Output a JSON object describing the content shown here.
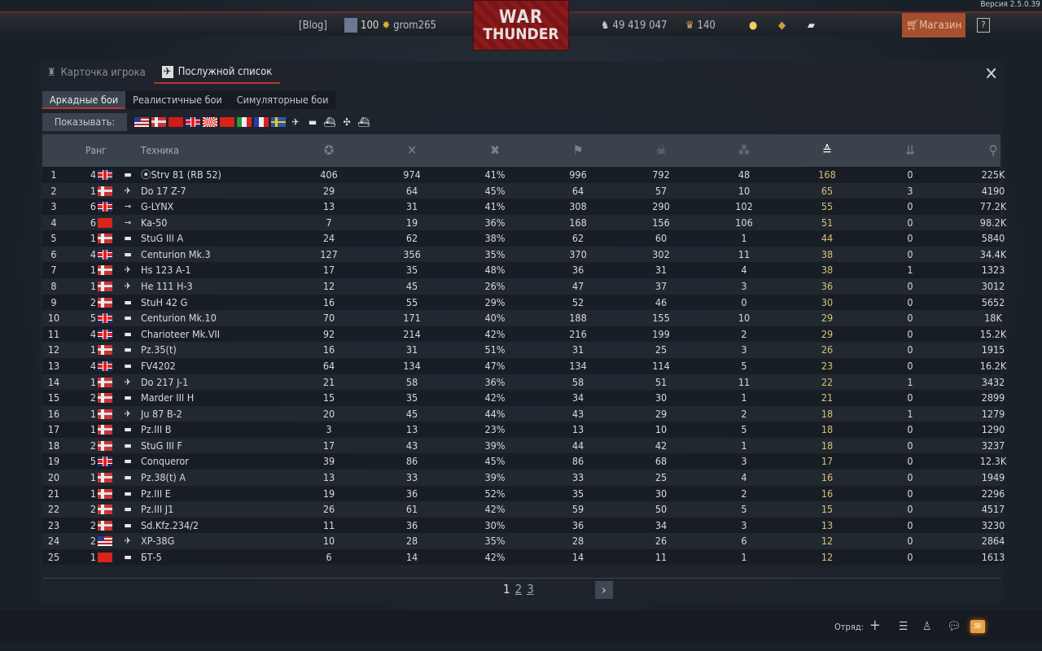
{
  "version": "Версия 2.5.0.39",
  "topbar": {
    "blog": "[Blog]",
    "level": "100",
    "username": "grom265",
    "silver_lions": "49 419 047",
    "eagles": "140",
    "shop": "Магазин",
    "help": "?",
    "logo_top": "WAR",
    "logo_bottom": "THUNDER"
  },
  "tabs": [
    {
      "label": "Карточка игрока",
      "icon": "player-card-icon"
    },
    {
      "label": "Послужной список",
      "icon": "service-record-icon"
    }
  ],
  "modes": [
    "Аркадные бои",
    "Реалистичные бои",
    "Симуляторные бои"
  ],
  "filter": {
    "label": "Показывать:",
    "nations": [
      "us",
      "de",
      "su",
      "uk",
      "jp",
      "cn",
      "it",
      "fr",
      "se"
    ],
    "types": [
      "aircraft",
      "tank",
      "ship",
      "helicopter",
      "boat"
    ]
  },
  "table": {
    "headers": {
      "rank": "Ранг",
      "vehicle": "Техника"
    },
    "stat_icons": [
      "victories-icon",
      "battles-icon",
      "win-rate-icon",
      "respawns-icon",
      "deaths-icon",
      "air-kills-icon",
      "ground-kills-icon",
      "naval-kills-icon",
      "activity-icon"
    ],
    "sorted_column": 6,
    "accent": "#d8c07a",
    "rows": [
      [
        "1",
        "4",
        "uk",
        "tank",
        "⦿Strv 81 (RB 52)",
        "406",
        "974",
        "41%",
        "996",
        "792",
        "48",
        "168",
        "0",
        "225K"
      ],
      [
        "2",
        "1",
        "de",
        "aircraft",
        "Do 17 Z-7",
        "29",
        "64",
        "45%",
        "64",
        "57",
        "10",
        "65",
        "3",
        "4190"
      ],
      [
        "3",
        "6",
        "uk",
        "helicopter",
        "G-LYNX",
        "13",
        "31",
        "41%",
        "308",
        "290",
        "102",
        "55",
        "0",
        "77.2K"
      ],
      [
        "4",
        "6",
        "cn",
        "helicopter",
        "Ka-50",
        "7",
        "19",
        "36%",
        "168",
        "156",
        "106",
        "51",
        "0",
        "98.2K"
      ],
      [
        "5",
        "1",
        "de",
        "tank",
        "StuG III A",
        "24",
        "62",
        "38%",
        "62",
        "60",
        "1",
        "44",
        "0",
        "5840"
      ],
      [
        "6",
        "4",
        "uk",
        "tank",
        "Centurion Mk.3",
        "127",
        "356",
        "35%",
        "370",
        "302",
        "11",
        "38",
        "0",
        "34.4K"
      ],
      [
        "7",
        "1",
        "de",
        "aircraft",
        "Hs 123 A-1",
        "17",
        "35",
        "48%",
        "36",
        "31",
        "4",
        "38",
        "1",
        "1323"
      ],
      [
        "8",
        "1",
        "de",
        "aircraft",
        "He 111 H-3",
        "12",
        "45",
        "26%",
        "47",
        "37",
        "3",
        "36",
        "0",
        "3012"
      ],
      [
        "9",
        "2",
        "de",
        "tank",
        "StuH 42 G",
        "16",
        "55",
        "29%",
        "52",
        "46",
        "0",
        "30",
        "0",
        "5652"
      ],
      [
        "10",
        "5",
        "uk",
        "tank",
        "Centurion Mk.10",
        "70",
        "171",
        "40%",
        "188",
        "155",
        "10",
        "29",
        "0",
        "18K"
      ],
      [
        "11",
        "4",
        "uk",
        "tank",
        "Charioteer Mk.VII",
        "92",
        "214",
        "42%",
        "216",
        "199",
        "2",
        "29",
        "0",
        "15.2K"
      ],
      [
        "12",
        "1",
        "de",
        "tank",
        "Pz.35(t)",
        "16",
        "31",
        "51%",
        "31",
        "25",
        "3",
        "26",
        "0",
        "1915"
      ],
      [
        "13",
        "4",
        "uk",
        "tank",
        "FV4202",
        "64",
        "134",
        "47%",
        "134",
        "114",
        "5",
        "23",
        "0",
        "16.2K"
      ],
      [
        "14",
        "1",
        "de",
        "aircraft",
        "Do 217 J-1",
        "21",
        "58",
        "36%",
        "58",
        "51",
        "11",
        "22",
        "1",
        "3432"
      ],
      [
        "15",
        "2",
        "de",
        "tank",
        "Marder III H",
        "15",
        "35",
        "42%",
        "34",
        "30",
        "1",
        "21",
        "0",
        "2899"
      ],
      [
        "16",
        "1",
        "de",
        "aircraft",
        "Ju 87 B-2",
        "20",
        "45",
        "44%",
        "43",
        "29",
        "2",
        "18",
        "1",
        "1279"
      ],
      [
        "17",
        "1",
        "de",
        "tank",
        "Pz.III B",
        "3",
        "13",
        "23%",
        "13",
        "10",
        "5",
        "18",
        "0",
        "1290"
      ],
      [
        "18",
        "2",
        "de",
        "tank",
        "StuG III F",
        "17",
        "43",
        "39%",
        "44",
        "42",
        "1",
        "18",
        "0",
        "3237"
      ],
      [
        "19",
        "5",
        "uk",
        "tank",
        "Conqueror",
        "39",
        "86",
        "45%",
        "86",
        "68",
        "3",
        "17",
        "0",
        "12.3K"
      ],
      [
        "20",
        "1",
        "de",
        "tank",
        "Pz.38(t) A",
        "13",
        "33",
        "39%",
        "33",
        "25",
        "4",
        "16",
        "0",
        "1949"
      ],
      [
        "21",
        "1",
        "de",
        "tank",
        "Pz.III E",
        "19",
        "36",
        "52%",
        "35",
        "30",
        "2",
        "16",
        "0",
        "2296"
      ],
      [
        "22",
        "2",
        "de",
        "tank",
        "Pz.III J1",
        "26",
        "61",
        "42%",
        "59",
        "50",
        "5",
        "15",
        "0",
        "4517"
      ],
      [
        "23",
        "2",
        "de",
        "tank",
        "Sd.Kfz.234/2",
        "11",
        "36",
        "30%",
        "36",
        "34",
        "3",
        "13",
        "0",
        "3230"
      ],
      [
        "24",
        "2",
        "us",
        "aircraft",
        "XP-38G",
        "10",
        "28",
        "35%",
        "28",
        "26",
        "6",
        "12",
        "0",
        "2864"
      ],
      [
        "25",
        "1",
        "cn",
        "tank",
        "БТ-5",
        "6",
        "14",
        "42%",
        "14",
        "11",
        "1",
        "12",
        "0",
        "1613"
      ]
    ]
  },
  "pagination": {
    "pages": [
      "1",
      "2",
      "3"
    ],
    "current": "1",
    "next": "›"
  },
  "bottom": {
    "squad_label": "Отряд:",
    "add": "+"
  }
}
